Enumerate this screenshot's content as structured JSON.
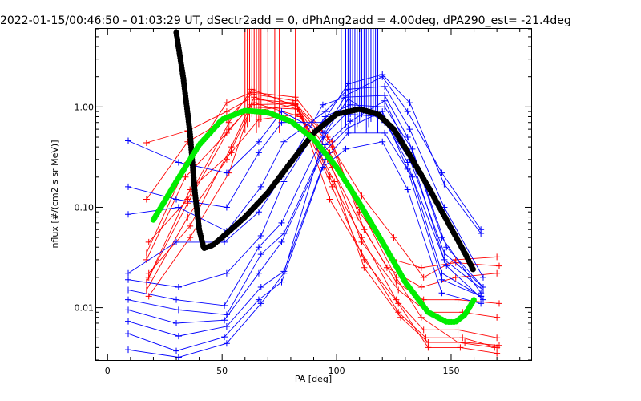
{
  "chart_data": {
    "type": "line",
    "title": "2022-01-15/00:46:50 - 01:03:29 UT, dSectr2add = 0, dPhAng2add = 4.00deg, dPA290_est= -21.4deg",
    "xlabel": "PA [deg]",
    "ylabel": "nflux [#/(cm2 s sr MeV)]",
    "xlim": [
      -5,
      185
    ],
    "ylim": [
      0.003,
      6.0
    ],
    "yscale": "log",
    "xticks": [
      "0",
      "50",
      "100",
      "150"
    ],
    "yticks": [
      "0.01",
      "0.10",
      "1.00"
    ],
    "grid": false,
    "legend": "none",
    "colors": {
      "red": "#ff0000",
      "blue": "#0000ff",
      "black": "#000000",
      "green": "#00ee00"
    },
    "series": [
      {
        "color": "red",
        "x": [
          17,
          35,
          52,
          62,
          81,
          96,
          109,
          122,
          137,
          152,
          170
        ],
        "y": [
          0.44,
          0.58,
          0.9,
          1.2,
          1.1,
          0.3,
          0.08,
          0.025,
          0.016,
          0.02,
          0.022
        ]
      },
      {
        "color": "red",
        "x": [
          17,
          35,
          52,
          63,
          82,
          97,
          111,
          126,
          138,
          153,
          170
        ],
        "y": [
          0.12,
          0.45,
          0.75,
          1.35,
          1.15,
          0.2,
          0.05,
          0.012,
          0.006,
          0.006,
          0.005
        ]
      },
      {
        "color": "red",
        "x": [
          18,
          35,
          53,
          63,
          83,
          97,
          111,
          127,
          139,
          155,
          170
        ],
        "y": [
          0.045,
          0.12,
          0.7,
          1.5,
          1.0,
          0.12,
          0.035,
          0.009,
          0.005,
          0.005,
          0.004
        ]
      },
      {
        "color": "red",
        "x": [
          17,
          34,
          52,
          62,
          83,
          97,
          110,
          126,
          137,
          153,
          169
        ],
        "y": [
          0.03,
          0.2,
          0.55,
          1.0,
          0.95,
          0.35,
          0.1,
          0.02,
          0.008,
          0.0045,
          0.004
        ]
      },
      {
        "color": "red",
        "x": [
          18,
          36,
          54,
          64,
          83,
          98,
          112,
          127,
          140,
          154,
          170
        ],
        "y": [
          0.022,
          0.065,
          0.4,
          1.25,
          0.95,
          0.16,
          0.03,
          0.011,
          0.004,
          0.004,
          0.0035
        ]
      },
      {
        "color": "red",
        "x": [
          17,
          35,
          52,
          62,
          82,
          98,
          111,
          125,
          138,
          152,
          170
        ],
        "y": [
          0.015,
          0.08,
          0.3,
          0.9,
          1.05,
          0.4,
          0.13,
          0.05,
          0.02,
          0.03,
          0.032
        ]
      },
      {
        "color": "red",
        "x": [
          18,
          36,
          53,
          63,
          82,
          98,
          112,
          126,
          138,
          153,
          171
        ],
        "y": [
          0.013,
          0.05,
          0.22,
          1.05,
          1.08,
          0.45,
          0.06,
          0.018,
          0.012,
          0.012,
          0.011
        ]
      },
      {
        "color": "red",
        "x": [
          17,
          35,
          53,
          64,
          84,
          98,
          111,
          127,
          140,
          155,
          170
        ],
        "y": [
          0.018,
          0.11,
          0.6,
          1.1,
          0.8,
          0.25,
          0.045,
          0.015,
          0.009,
          0.009,
          0.008
        ]
      },
      {
        "color": "red",
        "x": [
          17,
          35,
          52,
          63,
          82,
          96,
          110,
          125,
          137,
          152,
          171
        ],
        "y": [
          0.035,
          0.28,
          1.1,
          1.4,
          1.25,
          0.5,
          0.09,
          0.03,
          0.025,
          0.028,
          0.026
        ]
      },
      {
        "color": "red",
        "x": [
          18,
          36,
          54,
          66,
          84,
          99,
          112,
          128,
          140,
          156,
          171
        ],
        "y": [
          0.02,
          0.15,
          0.35,
          0.75,
          0.85,
          0.18,
          0.025,
          0.008,
          0.0045,
          0.0045,
          0.0042
        ]
      },
      {
        "color": "blue",
        "x": [
          9,
          31,
          52,
          66,
          76,
          94,
          104,
          120,
          131,
          146,
          163
        ],
        "y": [
          0.46,
          0.28,
          0.22,
          0.45,
          0.9,
          0.55,
          1.3,
          2.0,
          0.9,
          0.22,
          0.06
        ]
      },
      {
        "color": "blue",
        "x": [
          9,
          30,
          52,
          66,
          76,
          94,
          105,
          120,
          132,
          147,
          163
        ],
        "y": [
          0.16,
          0.12,
          0.1,
          0.35,
          0.7,
          0.7,
          1.7,
          2.1,
          1.1,
          0.17,
          0.055
        ]
      },
      {
        "color": "blue",
        "x": [
          9,
          31,
          52,
          67,
          77,
          95,
          105,
          121,
          132,
          147,
          164
        ],
        "y": [
          0.085,
          0.1,
          0.058,
          0.16,
          0.45,
          0.9,
          1.5,
          1.6,
          0.6,
          0.1,
          0.02
        ]
      },
      {
        "color": "blue",
        "x": [
          9,
          30,
          51,
          66,
          76,
          94,
          104,
          121,
          131,
          146,
          163
        ],
        "y": [
          0.022,
          0.045,
          0.045,
          0.09,
          0.2,
          1.05,
          1.25,
          1.3,
          0.5,
          0.05,
          0.014
        ]
      },
      {
        "color": "blue",
        "x": [
          9,
          31,
          52,
          67,
          77,
          95,
          106,
          121,
          133,
          148,
          164
        ],
        "y": [
          0.019,
          0.016,
          0.022,
          0.052,
          0.18,
          0.8,
          1.05,
          1.0,
          0.38,
          0.04,
          0.016
        ]
      },
      {
        "color": "blue",
        "x": [
          9,
          30,
          51,
          66,
          76,
          94,
          104,
          120,
          131,
          146,
          163
        ],
        "y": [
          0.015,
          0.012,
          0.0105,
          0.04,
          0.07,
          0.5,
          0.85,
          0.8,
          0.28,
          0.022,
          0.013
        ]
      },
      {
        "color": "blue",
        "x": [
          9,
          31,
          52,
          67,
          77,
          95,
          106,
          121,
          132,
          147,
          164
        ],
        "y": [
          0.012,
          0.0095,
          0.0085,
          0.034,
          0.055,
          0.42,
          0.72,
          1.15,
          0.35,
          0.03,
          0.015
        ]
      },
      {
        "color": "blue",
        "x": [
          9,
          30,
          51,
          66,
          76,
          94,
          105,
          120,
          131,
          146,
          163
        ],
        "y": [
          0.0095,
          0.007,
          0.0075,
          0.022,
          0.045,
          0.35,
          0.62,
          0.9,
          0.24,
          0.019,
          0.013
        ]
      },
      {
        "color": "blue",
        "x": [
          9,
          31,
          52,
          67,
          77,
          95,
          105,
          121,
          133,
          148,
          164
        ],
        "y": [
          0.0073,
          0.0052,
          0.0065,
          0.016,
          0.023,
          0.3,
          0.55,
          0.55,
          0.2,
          0.026,
          0.012
        ]
      },
      {
        "color": "blue",
        "x": [
          9,
          30,
          51,
          66,
          76,
          94,
          104,
          120,
          131,
          146,
          163
        ],
        "y": [
          0.0055,
          0.0037,
          0.0051,
          0.012,
          0.018,
          0.25,
          0.38,
          0.45,
          0.15,
          0.014,
          0.011
        ]
      },
      {
        "color": "blue",
        "x": [
          9,
          31,
          52,
          67,
          77,
          95,
          105,
          121,
          132,
          147,
          164
        ],
        "y": [
          0.0038,
          0.0032,
          0.0044,
          0.011,
          0.022,
          0.55,
          1.2,
          0.7,
          0.3,
          0.035,
          0.016
        ]
      }
    ],
    "fits": [
      {
        "color": "black",
        "x": [
          30,
          33,
          36,
          38,
          40,
          42,
          46,
          52,
          60,
          70,
          80,
          90,
          100,
          110,
          118,
          125,
          132,
          140,
          148,
          156,
          160
        ],
        "y": [
          5.5,
          2.0,
          0.55,
          0.15,
          0.06,
          0.039,
          0.042,
          0.055,
          0.08,
          0.14,
          0.28,
          0.55,
          0.85,
          0.95,
          0.85,
          0.6,
          0.33,
          0.16,
          0.075,
          0.035,
          0.023
        ]
      },
      {
        "color": "green",
        "x": [
          20,
          30,
          40,
          50,
          60,
          70,
          80,
          90,
          100,
          110,
          120,
          130,
          140,
          148,
          152,
          156,
          160
        ],
        "y": [
          0.075,
          0.18,
          0.42,
          0.75,
          0.92,
          0.88,
          0.72,
          0.48,
          0.25,
          0.11,
          0.045,
          0.018,
          0.009,
          0.0072,
          0.0072,
          0.0085,
          0.012
        ]
      }
    ],
    "spikes": [
      {
        "color": "red",
        "x": [
          60,
          61,
          62,
          63,
          64,
          65,
          66,
          67,
          70,
          73,
          75,
          82
        ]
      },
      {
        "color": "blue",
        "x": [
          102,
          104,
          105,
          106,
          107,
          108,
          109,
          110,
          111,
          112,
          113,
          114,
          115,
          116,
          117,
          118
        ]
      }
    ]
  }
}
